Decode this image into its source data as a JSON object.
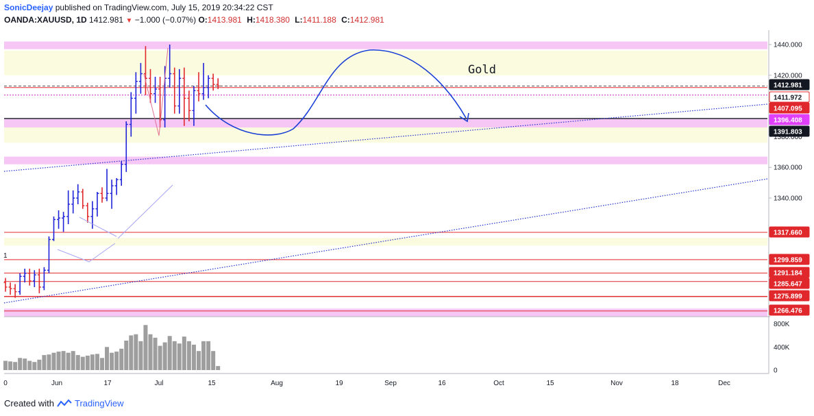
{
  "header": {
    "author": "SonicDeejay",
    "published": "published on TradingView.com, July 15, 2019 20:34:22 CST",
    "symbol": "OANDA:XAUUSD, 1D",
    "last": "1412.981",
    "change": "−1.000 (−0.07%)",
    "o_label": "O:",
    "o_value": "1413.981",
    "h_label": "H:",
    "h_value": "1418.380",
    "l_label": "L:",
    "l_value": "1411.188",
    "c_label": "C:",
    "c_value": "1412.981"
  },
  "footer": {
    "created_with": "Created with",
    "brand": "TradingView"
  },
  "colors": {
    "up": "#1e22d8",
    "down": "#e0282c",
    "arrow": "#1a3fd6",
    "band_pink": "#f6c6f5",
    "band_yellow": "#fbfbdf",
    "volume": "#9e9e9e"
  },
  "chart_data": {
    "type": "ohlc",
    "title": "Gold",
    "annotation_pane_label": "1",
    "price_axis": {
      "min": 1260,
      "max": 1450,
      "ticks": [
        "1440.000",
        "1420.000",
        "1380.000",
        "1360.000",
        "1340.000"
      ]
    },
    "volume_axis": {
      "min": 0,
      "max": 900000,
      "ticks": [
        "800K",
        "400K",
        "0"
      ]
    },
    "x_ticks": [
      "0",
      "Jun",
      "17",
      "Jul",
      "15",
      "Aug",
      "19",
      "Sep",
      "16",
      "Oct",
      "15",
      "Nov",
      "18",
      "Dec"
    ],
    "bars": [
      [
        1285,
        1288,
        1279,
        1282
      ],
      [
        1282,
        1285,
        1277,
        1281
      ],
      [
        1281,
        1284,
        1275,
        1279
      ],
      [
        1279,
        1291,
        1277,
        1289
      ],
      [
        1289,
        1294,
        1285,
        1291
      ],
      [
        1291,
        1294,
        1283,
        1286
      ],
      [
        1286,
        1293,
        1282,
        1290
      ],
      [
        1290,
        1294,
        1278,
        1282
      ],
      [
        1282,
        1295,
        1280,
        1293
      ],
      [
        1293,
        1315,
        1291,
        1313
      ],
      [
        1313,
        1328,
        1312,
        1326
      ],
      [
        1326,
        1332,
        1320,
        1327
      ],
      [
        1327,
        1331,
        1318,
        1328
      ],
      [
        1328,
        1345,
        1323,
        1336
      ],
      [
        1336,
        1345,
        1330,
        1340
      ],
      [
        1340,
        1349,
        1336,
        1344
      ],
      [
        1344,
        1346,
        1333,
        1335
      ],
      [
        1335,
        1337,
        1324,
        1328
      ],
      [
        1328,
        1338,
        1320,
        1333
      ],
      [
        1333,
        1344,
        1328,
        1343
      ],
      [
        1343,
        1347,
        1337,
        1340
      ],
      [
        1340,
        1359,
        1338,
        1343
      ],
      [
        1343,
        1352,
        1333,
        1348
      ],
      [
        1348,
        1353,
        1342,
        1352
      ],
      [
        1352,
        1364,
        1348,
        1362
      ],
      [
        1362,
        1390,
        1357,
        1388
      ],
      [
        1388,
        1409,
        1380,
        1405
      ],
      [
        1405,
        1422,
        1395,
        1416
      ],
      [
        1416,
        1428,
        1408,
        1421
      ],
      [
        1421,
        1439,
        1407,
        1418
      ],
      [
        1418,
        1424,
        1402,
        1408
      ],
      [
        1408,
        1419,
        1402,
        1411
      ],
      [
        1411,
        1419,
        1386,
        1391
      ],
      [
        1391,
        1426,
        1386,
        1418
      ],
      [
        1418,
        1440,
        1412,
        1421
      ],
      [
        1421,
        1425,
        1395,
        1400
      ],
      [
        1400,
        1424,
        1395,
        1418
      ],
      [
        1418,
        1425,
        1387,
        1405
      ],
      [
        1405,
        1410,
        1390,
        1397
      ],
      [
        1397,
        1413,
        1387,
        1410
      ],
      [
        1410,
        1422,
        1403,
        1408
      ],
      [
        1408,
        1428,
        1404,
        1412
      ],
      [
        1412,
        1420,
        1405,
        1418
      ],
      [
        1418,
        1421,
        1410,
        1414
      ],
      [
        1414,
        1418,
        1411,
        1413
      ]
    ],
    "volumes": [
      160000,
      150000,
      140000,
      210000,
      200000,
      160000,
      140000,
      180000,
      260000,
      270000,
      300000,
      320000,
      330000,
      300000,
      330000,
      260000,
      230000,
      250000,
      270000,
      280000,
      210000,
      400000,
      300000,
      320000,
      370000,
      510000,
      600000,
      620000,
      500000,
      780000,
      620000,
      560000,
      420000,
      480000,
      590000,
      500000,
      460000,
      580000,
      500000,
      440000,
      330000,
      500000,
      500000,
      330000,
      70000
    ],
    "price_labels": [
      {
        "text": "1412.981",
        "value": 1412.981,
        "bg": "#131722",
        "fg": "#ffffff"
      },
      {
        "text": "1411.972",
        "value": 1411.972,
        "bg": "#ffffff",
        "fg": "#131722",
        "border": "#e0282c"
      },
      {
        "text": "1407.095",
        "value": 1407.095,
        "bg": "#e0282c",
        "fg": "#ffffff"
      },
      {
        "text": "1396.408",
        "value": 1396.408,
        "bg": "#e040fb",
        "fg": "#ffffff"
      },
      {
        "text": "1391.803",
        "value": 1391.803,
        "bg": "#131722",
        "fg": "#ffffff"
      },
      {
        "text": "1317.660",
        "value": 1317.66,
        "bg": "#e0282c",
        "fg": "#ffffff"
      },
      {
        "text": "1299.859",
        "value": 1299.859,
        "bg": "#e0282c",
        "fg": "#ffffff"
      },
      {
        "text": "1291.184",
        "value": 1291.184,
        "bg": "#e0282c",
        "fg": "#ffffff"
      },
      {
        "text": "1285.647",
        "value": 1285.647,
        "bg": "#e0282c",
        "fg": "#ffffff"
      },
      {
        "text": "1275.899",
        "value": 1275.899,
        "bg": "#e0282c",
        "fg": "#ffffff"
      },
      {
        "text": "1266.476",
        "value": 1266.476,
        "bg": "#e0282c",
        "fg": "#ffffff"
      }
    ]
  }
}
